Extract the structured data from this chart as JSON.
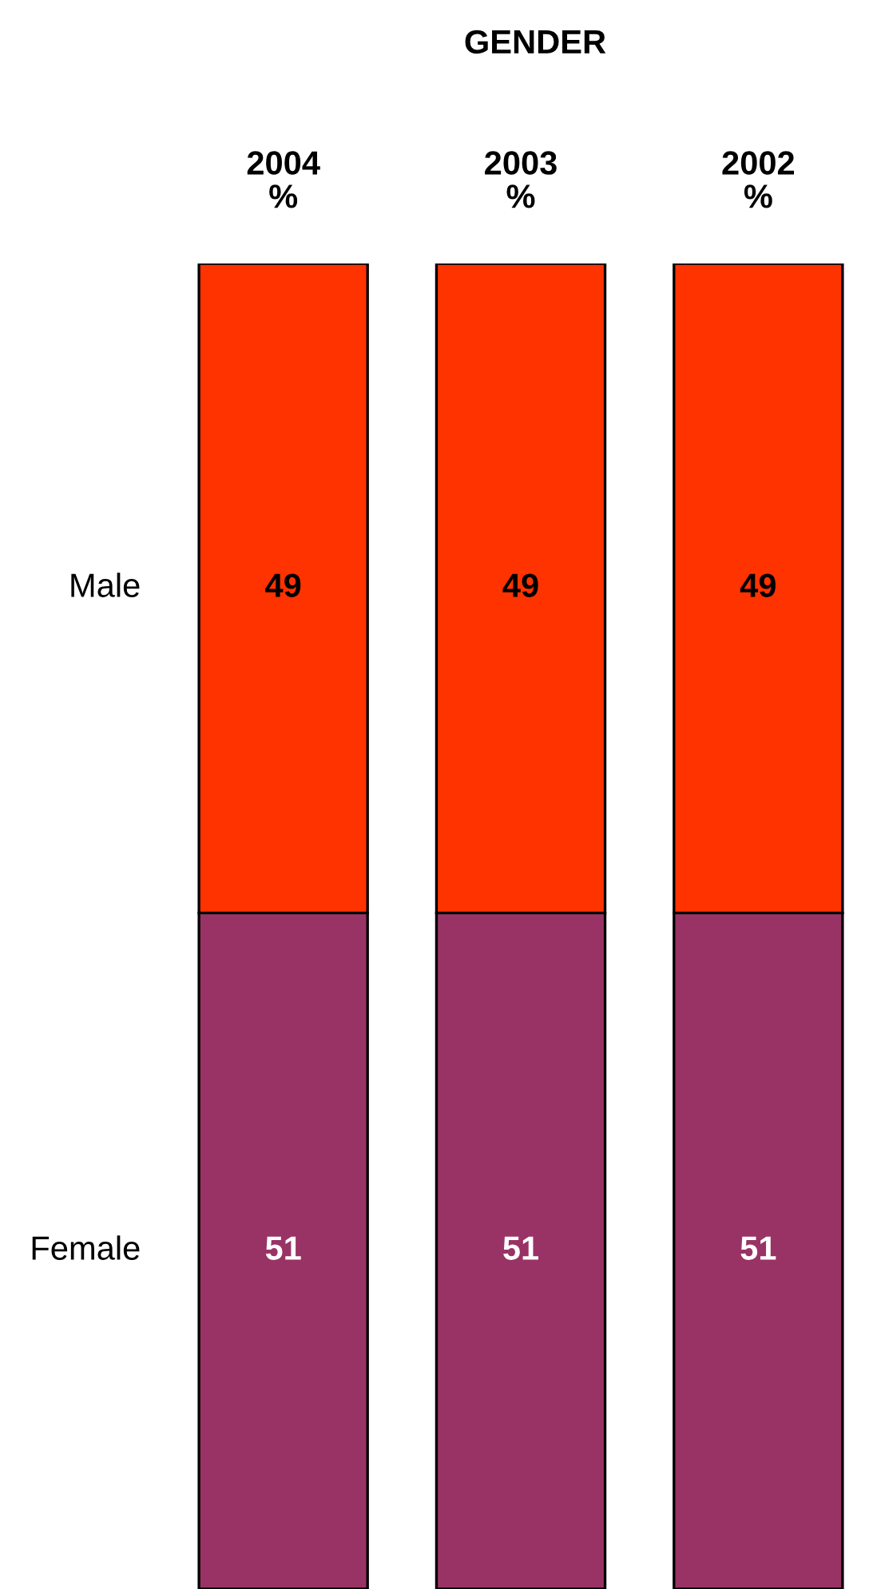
{
  "chart_data": {
    "type": "bar",
    "title": "GENDER",
    "stacked": true,
    "data_labels": true,
    "categories": [
      "2004\n%",
      "2003\n%",
      "2002\n%"
    ],
    "series": [
      {
        "name": "Female",
        "color": "#993366",
        "values": [
          51,
          51,
          51
        ]
      },
      {
        "name": "Male",
        "color": "#ff3300",
        "values": [
          49,
          49,
          49
        ]
      }
    ]
  }
}
